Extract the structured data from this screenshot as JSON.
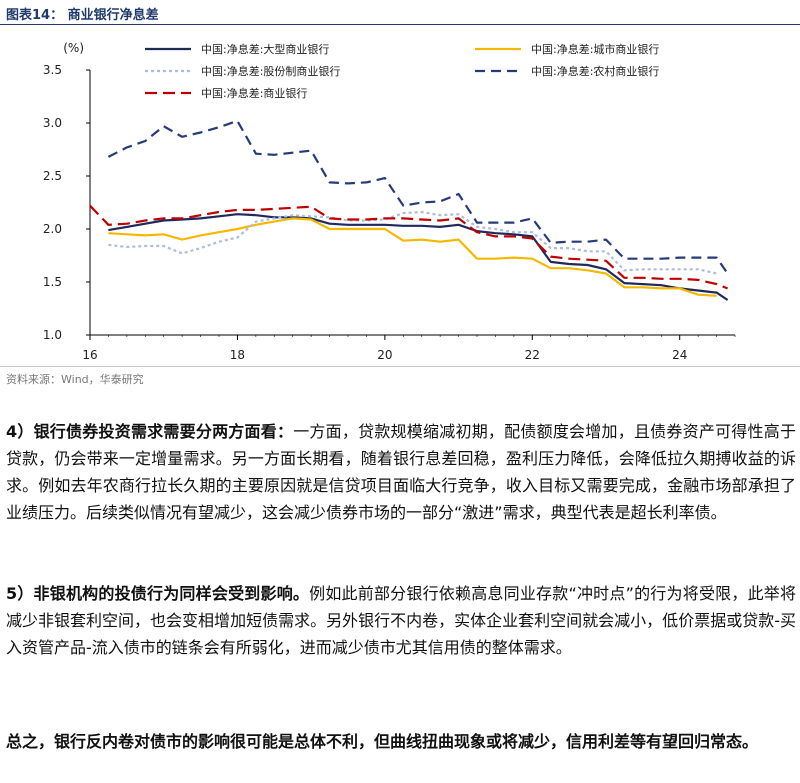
{
  "figure": {
    "title": "图表14：  商业银行净息差",
    "source": "资料来源：Wind，华泰研究"
  },
  "chart_data": {
    "type": "line",
    "title": "",
    "ylabel": "(%)",
    "xlabel": "",
    "ylim": [
      1.0,
      3.5
    ],
    "yticks": [
      "1.0",
      "1.5",
      "2.0",
      "2.5",
      "3.0",
      "3.5"
    ],
    "xlim": [
      2016,
      2024.75
    ],
    "xticks": [
      "16",
      "18",
      "20",
      "22",
      "24"
    ],
    "legend_position": "top",
    "series": [
      {
        "name": "中国:净息差:大型商业银行",
        "color": "#1f2a5c",
        "dash": "",
        "points": [
          [
            2016.25,
            1.99
          ],
          [
            2016.5,
            2.02
          ],
          [
            2016.75,
            2.05
          ],
          [
            2017.0,
            2.08
          ],
          [
            2017.25,
            2.09
          ],
          [
            2017.5,
            2.1
          ],
          [
            2017.75,
            2.12
          ],
          [
            2018.0,
            2.14
          ],
          [
            2018.25,
            2.13
          ],
          [
            2018.5,
            2.11
          ],
          [
            2018.75,
            2.11
          ],
          [
            2019.0,
            2.1
          ],
          [
            2019.25,
            2.05
          ],
          [
            2019.5,
            2.04
          ],
          [
            2019.75,
            2.04
          ],
          [
            2020.0,
            2.04
          ],
          [
            2020.25,
            2.03
          ],
          [
            2020.5,
            2.03
          ],
          [
            2020.75,
            2.02
          ],
          [
            2021.0,
            2.04
          ],
          [
            2021.25,
            1.98
          ],
          [
            2021.5,
            1.96
          ],
          [
            2021.75,
            1.95
          ],
          [
            2022.0,
            1.93
          ],
          [
            2022.25,
            1.69
          ],
          [
            2022.5,
            1.67
          ],
          [
            2022.75,
            1.66
          ],
          [
            2023.0,
            1.62
          ],
          [
            2023.25,
            1.49
          ],
          [
            2023.5,
            1.48
          ],
          [
            2023.75,
            1.47
          ],
          [
            2024.0,
            1.44
          ],
          [
            2024.25,
            1.42
          ],
          [
            2024.5,
            1.4
          ],
          [
            2024.65,
            1.33
          ]
        ]
      },
      {
        "name": "中国:净息差:城市商业银行",
        "color": "#f5b800",
        "dash": "",
        "points": [
          [
            2016.25,
            1.96
          ],
          [
            2016.5,
            1.95
          ],
          [
            2016.75,
            1.94
          ],
          [
            2017.0,
            1.95
          ],
          [
            2017.25,
            1.9
          ],
          [
            2017.5,
            1.94
          ],
          [
            2017.75,
            1.97
          ],
          [
            2018.0,
            2.0
          ],
          [
            2018.25,
            2.04
          ],
          [
            2018.5,
            2.07
          ],
          [
            2018.75,
            2.1
          ],
          [
            2019.0,
            2.09
          ],
          [
            2019.25,
            2.0
          ],
          [
            2019.5,
            2.0
          ],
          [
            2019.75,
            2.0
          ],
          [
            2020.0,
            2.0
          ],
          [
            2020.25,
            1.89
          ],
          [
            2020.5,
            1.9
          ],
          [
            2020.75,
            1.88
          ],
          [
            2021.0,
            1.9
          ],
          [
            2021.25,
            1.72
          ],
          [
            2021.5,
            1.72
          ],
          [
            2021.75,
            1.73
          ],
          [
            2022.0,
            1.72
          ],
          [
            2022.25,
            1.63
          ],
          [
            2022.5,
            1.63
          ],
          [
            2022.75,
            1.61
          ],
          [
            2023.0,
            1.58
          ],
          [
            2023.25,
            1.45
          ],
          [
            2023.5,
            1.45
          ],
          [
            2023.75,
            1.44
          ],
          [
            2024.0,
            1.44
          ],
          [
            2024.25,
            1.38
          ],
          [
            2024.5,
            1.37
          ]
        ]
      },
      {
        "name": "中国:净息差:股份制商业银行",
        "color": "#aebcdc",
        "dash": "3,3",
        "points": [
          [
            2016.25,
            1.85
          ],
          [
            2016.5,
            1.83
          ],
          [
            2016.75,
            1.84
          ],
          [
            2017.0,
            1.84
          ],
          [
            2017.25,
            1.77
          ],
          [
            2017.5,
            1.82
          ],
          [
            2017.75,
            1.88
          ],
          [
            2018.0,
            1.92
          ],
          [
            2018.25,
            2.07
          ],
          [
            2018.5,
            2.1
          ],
          [
            2018.75,
            2.13
          ],
          [
            2019.0,
            2.12
          ],
          [
            2019.25,
            2.11
          ],
          [
            2019.5,
            2.08
          ],
          [
            2019.75,
            2.08
          ],
          [
            2020.0,
            2.09
          ],
          [
            2020.25,
            2.15
          ],
          [
            2020.5,
            2.16
          ],
          [
            2020.75,
            2.13
          ],
          [
            2021.0,
            2.14
          ],
          [
            2021.25,
            2.02
          ],
          [
            2021.5,
            2.0
          ],
          [
            2021.75,
            1.97
          ],
          [
            2022.0,
            1.97
          ],
          [
            2022.25,
            1.82
          ],
          [
            2022.5,
            1.82
          ],
          [
            2022.75,
            1.79
          ],
          [
            2023.0,
            1.79
          ],
          [
            2023.25,
            1.61
          ],
          [
            2023.5,
            1.62
          ],
          [
            2023.75,
            1.62
          ],
          [
            2024.0,
            1.62
          ],
          [
            2024.25,
            1.62
          ],
          [
            2024.5,
            1.58
          ]
        ]
      },
      {
        "name": "中国:净息差:农村商业银行",
        "color": "#263c78",
        "dash": "10,6",
        "points": [
          [
            2016.25,
            2.68
          ],
          [
            2016.5,
            2.77
          ],
          [
            2016.75,
            2.83
          ],
          [
            2017.0,
            2.97
          ],
          [
            2017.25,
            2.87
          ],
          [
            2017.5,
            2.91
          ],
          [
            2017.75,
            2.96
          ],
          [
            2018.0,
            3.02
          ],
          [
            2018.25,
            2.71
          ],
          [
            2018.5,
            2.7
          ],
          [
            2018.75,
            2.72
          ],
          [
            2019.0,
            2.74
          ],
          [
            2019.25,
            2.44
          ],
          [
            2019.5,
            2.43
          ],
          [
            2019.75,
            2.44
          ],
          [
            2020.0,
            2.48
          ],
          [
            2020.25,
            2.22
          ],
          [
            2020.5,
            2.25
          ],
          [
            2020.75,
            2.26
          ],
          [
            2021.0,
            2.33
          ],
          [
            2021.25,
            2.06
          ],
          [
            2021.5,
            2.06
          ],
          [
            2021.75,
            2.06
          ],
          [
            2022.0,
            2.1
          ],
          [
            2022.25,
            1.87
          ],
          [
            2022.5,
            1.88
          ],
          [
            2022.75,
            1.88
          ],
          [
            2023.0,
            1.9
          ],
          [
            2023.25,
            1.72
          ],
          [
            2023.5,
            1.72
          ],
          [
            2023.75,
            1.72
          ],
          [
            2024.0,
            1.73
          ],
          [
            2024.25,
            1.73
          ],
          [
            2024.5,
            1.73
          ],
          [
            2024.65,
            1.58
          ]
        ]
      },
      {
        "name": "中国:净息差:商业银行",
        "color": "#c00000",
        "dash": "12,6",
        "points": [
          [
            2016.0,
            2.22
          ],
          [
            2016.25,
            2.04
          ],
          [
            2016.5,
            2.05
          ],
          [
            2016.75,
            2.08
          ],
          [
            2017.0,
            2.1
          ],
          [
            2017.25,
            2.1
          ],
          [
            2017.5,
            2.13
          ],
          [
            2017.75,
            2.16
          ],
          [
            2018.0,
            2.18
          ],
          [
            2018.25,
            2.18
          ],
          [
            2018.5,
            2.19
          ],
          [
            2018.75,
            2.2
          ],
          [
            2019.0,
            2.21
          ],
          [
            2019.25,
            2.1
          ],
          [
            2019.5,
            2.09
          ],
          [
            2019.75,
            2.09
          ],
          [
            2020.0,
            2.1
          ],
          [
            2020.25,
            2.1
          ],
          [
            2020.5,
            2.09
          ],
          [
            2020.75,
            2.08
          ],
          [
            2021.0,
            2.1
          ],
          [
            2021.25,
            1.97
          ],
          [
            2021.5,
            1.93
          ],
          [
            2021.75,
            1.93
          ],
          [
            2022.0,
            1.91
          ],
          [
            2022.25,
            1.74
          ],
          [
            2022.5,
            1.72
          ],
          [
            2022.75,
            1.71
          ],
          [
            2023.0,
            1.7
          ],
          [
            2023.25,
            1.54
          ],
          [
            2023.5,
            1.54
          ],
          [
            2023.75,
            1.53
          ],
          [
            2024.0,
            1.53
          ],
          [
            2024.25,
            1.52
          ],
          [
            2024.5,
            1.48
          ],
          [
            2024.65,
            1.44
          ]
        ]
      }
    ]
  },
  "text": {
    "p1_lead": "4）银行债券投资需求需要分两方面看：",
    "p1_body": "一方面，贷款规模缩减初期，配债额度会增加，且债券资产可得性高于贷款，仍会带来一定增量需求。另一方面长期看，随着银行息差回稳，盈利压力降低，会降低拉久期搏收益的诉求。例如去年农商行拉长久期的主要原因就是信贷项目面临大行竞争，收入目标又需要完成，金融市场部承担了业绩压力。后续类似情况有望减少，这会减少债券市场的一部分“激进”需求，典型代表是超长利率债。",
    "p2_lead": "5）非银机构的投债行为同样会受到影响。",
    "p2_body": "例如此前部分银行依赖高息同业存款“冲时点”的行为将受限，此举将减少非银套利空间，也会变相增加短债需求。另外银行不内卷，实体企业套利空间就会减小，低价票据或贷款-买入资管产品-流入债市的链条会有所弱化，进而减少债市尤其信用债的整体需求。",
    "p3": "总之，银行反内卷对债市的影响很可能是总体不利，但曲线扭曲现象或将减少，信用利差等有望回归常态。"
  }
}
